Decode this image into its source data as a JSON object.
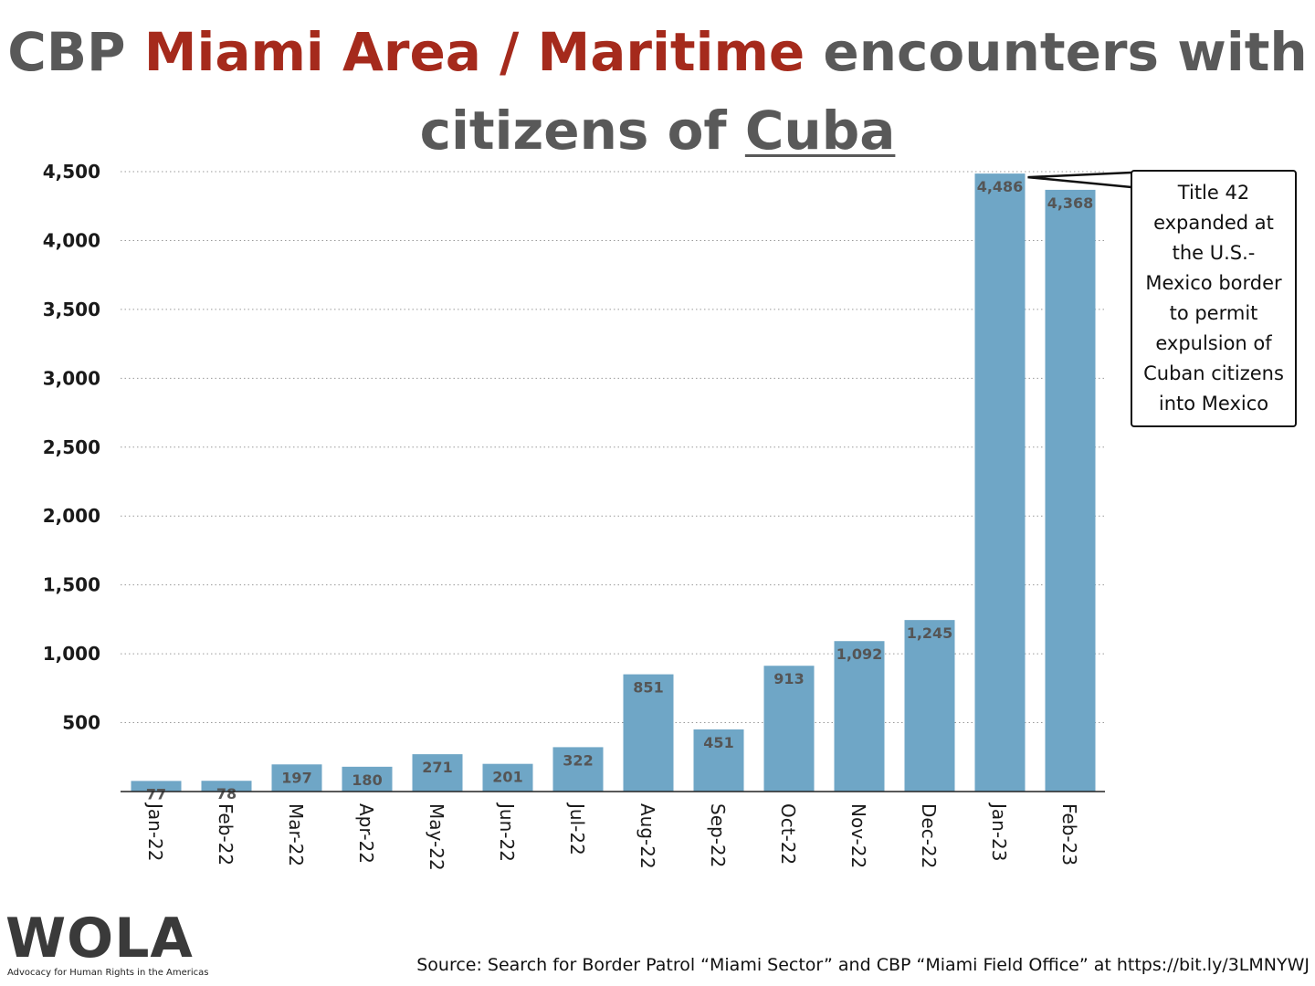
{
  "title": {
    "part1": "CBP ",
    "highlight": "Miami Area / Maritime",
    "part2": " encounters with",
    "part3": "citizens of ",
    "underlined": "Cuba"
  },
  "colors": {
    "bar": "#6fa6c6",
    "highlight": "#a52a1c",
    "title": "#595959"
  },
  "chart_data": {
    "type": "bar",
    "categories": [
      "Jan-22",
      "Feb-22",
      "Mar-22",
      "Apr-22",
      "May-22",
      "Jun-22",
      "Jul-22",
      "Aug-22",
      "Sep-22",
      "Oct-22",
      "Nov-22",
      "Dec-22",
      "Jan-23",
      "Feb-23"
    ],
    "values": [
      77,
      78,
      197,
      180,
      271,
      201,
      322,
      851,
      451,
      913,
      1092,
      1245,
      4486,
      4368
    ],
    "value_labels": [
      "77",
      "78",
      "197",
      "180",
      "271",
      "201",
      "322",
      "851",
      "451",
      "913",
      "1,092",
      "1,245",
      "4,486",
      "4,368"
    ],
    "title": "CBP Miami Area / Maritime encounters with citizens of Cuba",
    "xlabel": "",
    "ylabel": "",
    "ylim": [
      0,
      4500
    ],
    "yticks": [
      500,
      1000,
      1500,
      2000,
      2500,
      3000,
      3500,
      4000,
      4500
    ],
    "ytick_labels": [
      "500",
      "1,000",
      "1,500",
      "2,000",
      "2,500",
      "3,000",
      "3,500",
      "4,000",
      "4,500"
    ],
    "grid": "horizontal dotted",
    "annotation": {
      "target_category": "Jan-23",
      "lines": [
        "Title 42",
        "expanded at",
        "the U.S.-",
        "Mexico border",
        "to permit",
        "expulsion of",
        "Cuban citizens",
        "into Mexico"
      ]
    }
  },
  "logo": {
    "name": "WOLA",
    "tagline": "Advocacy for Human Rights in the Americas"
  },
  "source": "Source: Search for Border Patrol “Miami Sector” and CBP “Miami Field Office” at https://bit.ly/3LMNYWJ"
}
